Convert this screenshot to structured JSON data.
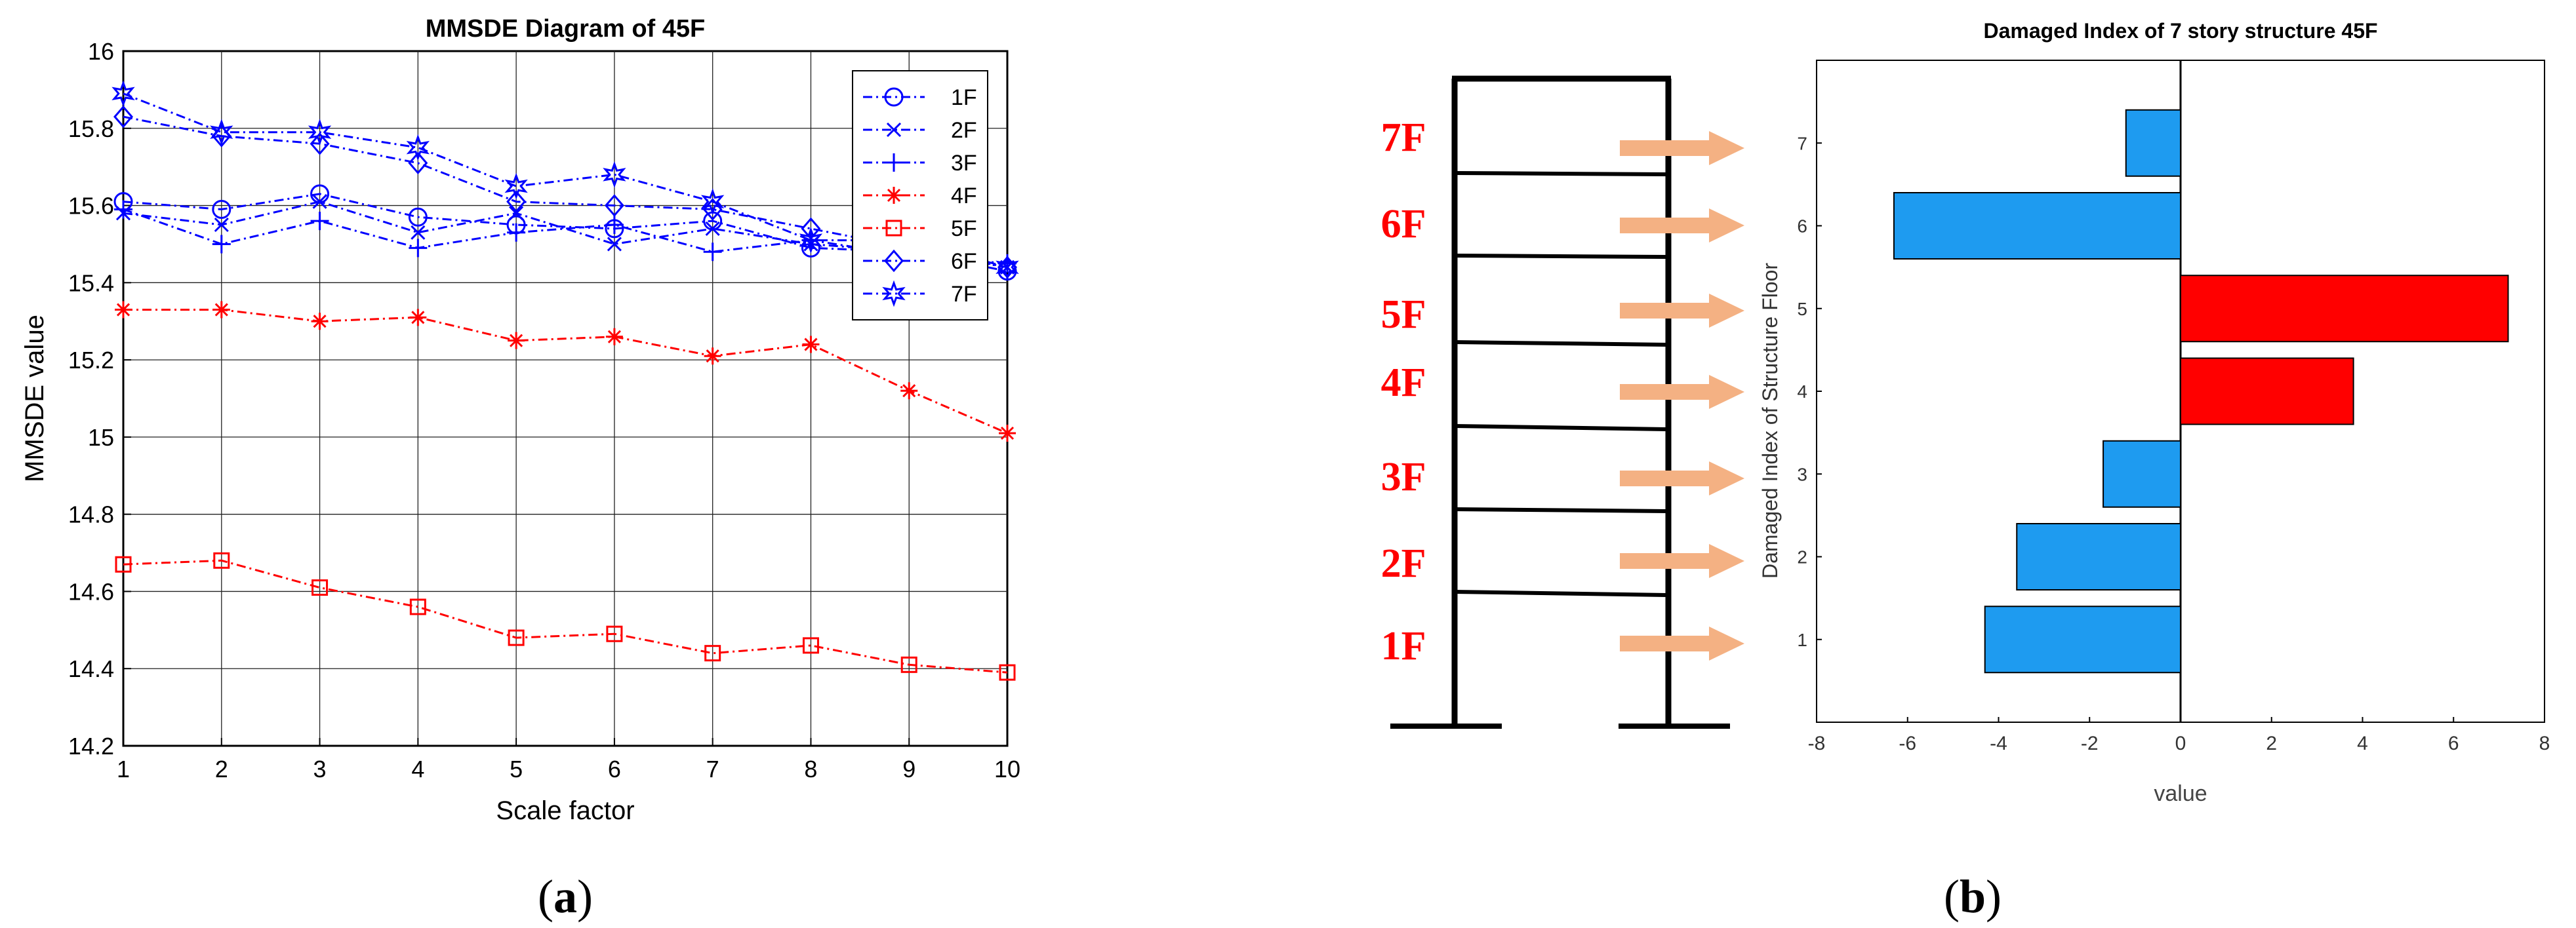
{
  "panels": {
    "a": {
      "label": "(a)",
      "letter": "a"
    },
    "b": {
      "label": "(b)",
      "letter": "b"
    }
  },
  "chart_data": [
    {
      "type": "line",
      "title": "MMSDE Diagram of 45F",
      "xlabel": "Scale factor",
      "ylabel": "MMSDE value",
      "xlim": [
        1,
        10
      ],
      "ylim": [
        14.2,
        16
      ],
      "xticks": [
        "1",
        "2",
        "3",
        "4",
        "5",
        "6",
        "7",
        "8",
        "9",
        "10"
      ],
      "yticks": [
        "14.2",
        "14.4",
        "14.6",
        "14.8",
        "15",
        "15.2",
        "15.4",
        "15.6",
        "15.8",
        "16"
      ],
      "grid": true,
      "legend_position": "top-right",
      "x": [
        1,
        2,
        3,
        4,
        5,
        6,
        7,
        8,
        9,
        10
      ],
      "series": [
        {
          "name": "1F",
          "color": "#0000ff",
          "marker": "circle",
          "values": [
            15.61,
            15.59,
            15.63,
            15.57,
            15.55,
            15.54,
            15.56,
            15.49,
            15.48,
            15.43
          ]
        },
        {
          "name": "2F",
          "color": "#0000ff",
          "marker": "x",
          "values": [
            15.58,
            15.55,
            15.61,
            15.53,
            15.58,
            15.5,
            15.54,
            15.5,
            15.48,
            15.44
          ]
        },
        {
          "name": "3F",
          "color": "#0000ff",
          "marker": "plus",
          "values": [
            15.59,
            15.5,
            15.56,
            15.49,
            15.53,
            15.55,
            15.48,
            15.51,
            15.47,
            15.45
          ]
        },
        {
          "name": "4F",
          "color": "#ff0000",
          "marker": "asterisk",
          "values": [
            15.33,
            15.33,
            15.3,
            15.31,
            15.25,
            15.26,
            15.21,
            15.24,
            15.12,
            15.01
          ]
        },
        {
          "name": "5F",
          "color": "#ff0000",
          "marker": "square",
          "values": [
            14.67,
            14.68,
            14.61,
            14.56,
            14.48,
            14.49,
            14.44,
            14.46,
            14.41,
            14.39
          ]
        },
        {
          "name": "6F",
          "color": "#0000ff",
          "marker": "diamond",
          "values": [
            15.83,
            15.78,
            15.76,
            15.71,
            15.61,
            15.6,
            15.59,
            15.54,
            15.49,
            15.44
          ]
        },
        {
          "name": "7F",
          "color": "#0000ff",
          "marker": "hexagram",
          "values": [
            15.89,
            15.79,
            15.79,
            15.75,
            15.65,
            15.68,
            15.61,
            15.51,
            15.51,
            15.44
          ]
        }
      ]
    },
    {
      "type": "bar",
      "orientation": "horizontal",
      "title": "Damaged Index of 7 story structure 45F",
      "xlabel": "value",
      "ylabel": "Damaged Index of Structure Floor",
      "xlim": [
        -8,
        8
      ],
      "ylim": [
        0,
        8
      ],
      "xticks": [
        "-8",
        "-6",
        "-4",
        "-2",
        "0",
        "2",
        "4",
        "6",
        "8"
      ],
      "categories": [
        "1",
        "2",
        "3",
        "4",
        "5",
        "6",
        "7"
      ],
      "values": [
        -4.3,
        -3.6,
        -1.7,
        3.8,
        7.2,
        -6.3,
        -1.2
      ],
      "colors": [
        "#1e9bf0",
        "#1e9bf0",
        "#1e9bf0",
        "#ff0000",
        "#ff0000",
        "#1e9bf0",
        "#1e9bf0"
      ],
      "grid": false
    }
  ],
  "structure": {
    "floor_labels": [
      "1F",
      "2F",
      "3F",
      "4F",
      "5F",
      "6F",
      "7F"
    ],
    "label_color": "#ff0000",
    "arrow_color": "#f4b183",
    "frame_color": "#000000"
  }
}
